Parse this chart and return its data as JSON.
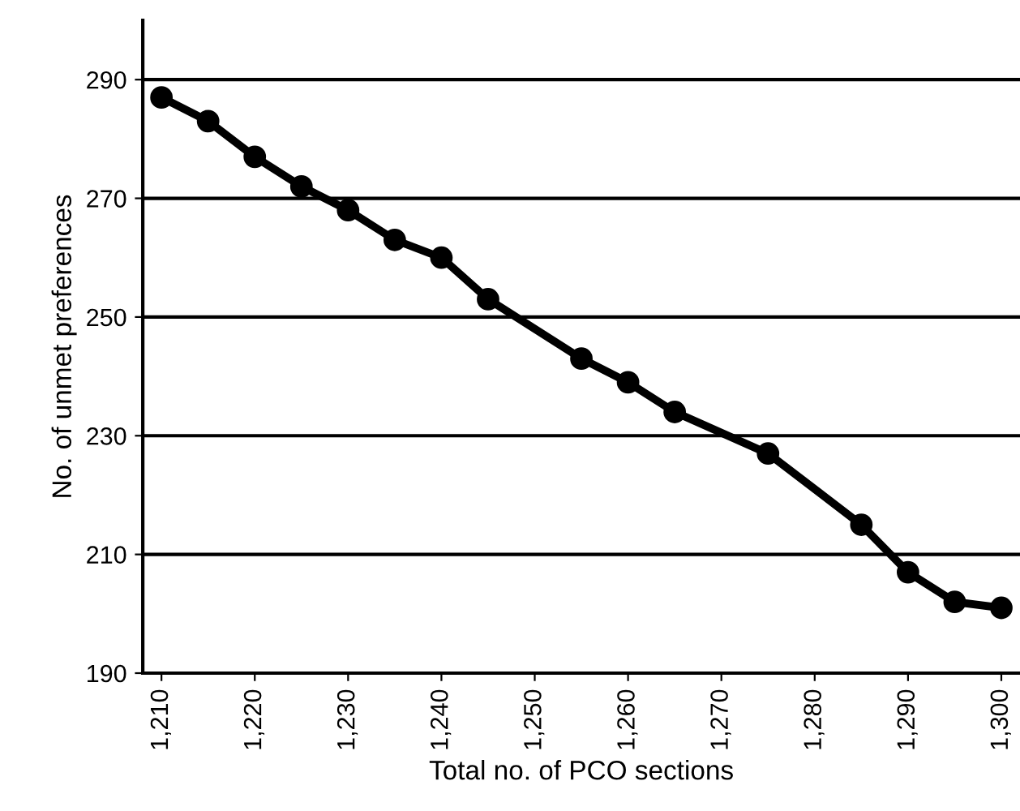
{
  "chart_data": {
    "type": "line",
    "xlabel": "Total no. of PCO sections",
    "ylabel": "No. of unmet preferences",
    "x": [
      1210,
      1215,
      1220,
      1225,
      1230,
      1235,
      1240,
      1245,
      1255,
      1260,
      1265,
      1275,
      1285,
      1290,
      1295,
      1300
    ],
    "series": [
      {
        "color": "#000000",
        "values": [
          287,
          283,
          277,
          272,
          268,
          263,
          260,
          253,
          243,
          239,
          234,
          227,
          215,
          207,
          202,
          201
        ]
      }
    ],
    "xlim": [
      1208,
      1302
    ],
    "ylim": [
      190,
      300
    ],
    "xticks": [
      {
        "value": 1210,
        "label": "1,210"
      },
      {
        "value": 1220,
        "label": "1,220"
      },
      {
        "value": 1230,
        "label": "1,230"
      },
      {
        "value": 1240,
        "label": "1,240"
      },
      {
        "value": 1250,
        "label": "1,250"
      },
      {
        "value": 1260,
        "label": "1,260"
      },
      {
        "value": 1270,
        "label": "1,270"
      },
      {
        "value": 1280,
        "label": "1,280"
      },
      {
        "value": 1290,
        "label": "1,290"
      },
      {
        "value": 1300,
        "label": "1,300"
      }
    ],
    "yticks": [
      190,
      210,
      230,
      250,
      270,
      290
    ],
    "grid": "y",
    "marker": "circle",
    "line_style": "solid",
    "legend": false
  }
}
